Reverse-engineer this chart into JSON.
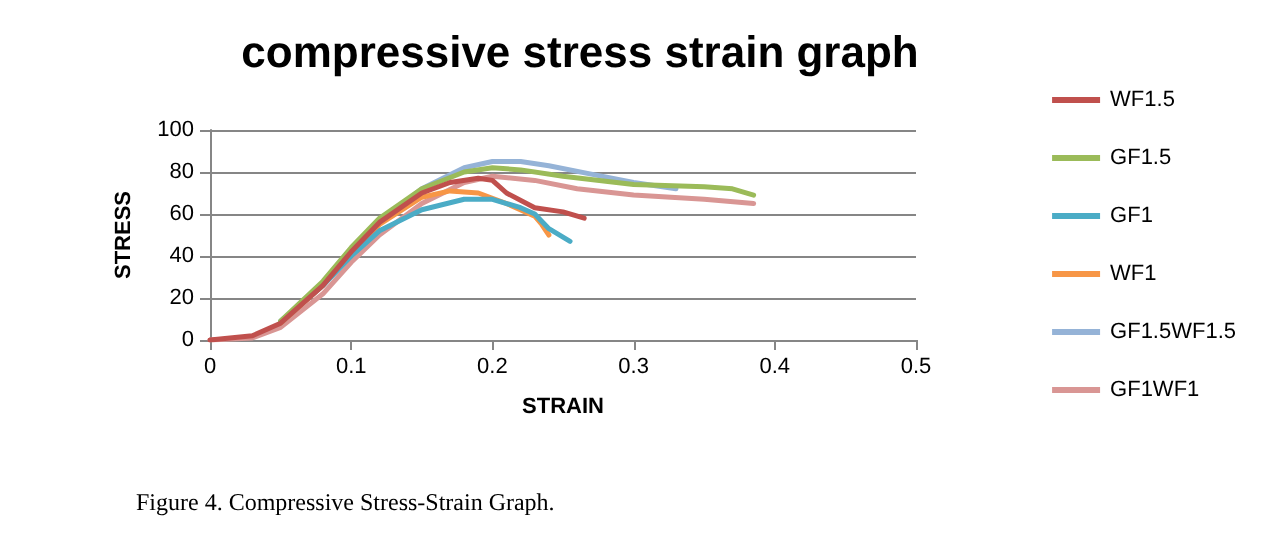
{
  "chart_data": {
    "type": "line",
    "title": "compressive stress strain graph",
    "xlabel": "STRAIN",
    "ylabel": "STRESS",
    "xlim": [
      0,
      0.5
    ],
    "xticks": [
      0,
      0.1,
      0.2,
      0.3,
      0.4,
      0.5
    ],
    "ylim": [
      0,
      100
    ],
    "yticks": [
      0,
      20,
      40,
      60,
      80,
      100
    ],
    "grid": "y",
    "legend": "right",
    "marker": "none",
    "line_style": "solid",
    "series": [
      {
        "name": "WF1.5",
        "color": "#c0504d",
        "x": [
          0,
          0.03,
          0.05,
          0.08,
          0.1,
          0.12,
          0.15,
          0.17,
          0.19,
          0.2,
          0.21,
          0.23,
          0.25,
          0.265
        ],
        "values": [
          0,
          2,
          8,
          26,
          42,
          56,
          70,
          75,
          77,
          76,
          70,
          63,
          61,
          58
        ]
      },
      {
        "name": "GF1.5",
        "color": "#9bbb59",
        "x": [
          0.05,
          0.08,
          0.1,
          0.12,
          0.15,
          0.18,
          0.2,
          0.22,
          0.25,
          0.3,
          0.35,
          0.37,
          0.385
        ],
        "values": [
          9,
          28,
          44,
          58,
          72,
          80,
          82,
          81,
          78,
          74,
          73,
          72,
          69
        ]
      },
      {
        "name": "GF1",
        "color": "#4bacc6",
        "x": [
          0.05,
          0.08,
          0.1,
          0.12,
          0.15,
          0.18,
          0.2,
          0.22,
          0.23,
          0.24,
          0.255
        ],
        "values": [
          9,
          26,
          40,
          52,
          62,
          67,
          67,
          63,
          60,
          53,
          47
        ]
      },
      {
        "name": "WF1",
        "color": "#f79646",
        "x": [
          0.05,
          0.08,
          0.1,
          0.12,
          0.15,
          0.17,
          0.19,
          0.21,
          0.23,
          0.235,
          0.24
        ],
        "values": [
          8,
          26,
          41,
          55,
          68,
          71,
          70,
          65,
          59,
          55,
          50
        ]
      },
      {
        "name": "GF1.5WF1.5",
        "color": "#95b3d7",
        "x": [
          0.05,
          0.08,
          0.1,
          0.12,
          0.15,
          0.18,
          0.2,
          0.22,
          0.24,
          0.27,
          0.3,
          0.33
        ],
        "values": [
          8,
          26,
          41,
          56,
          72,
          82,
          85,
          85,
          83,
          79,
          75,
          72
        ]
      },
      {
        "name": "GF1WF1",
        "color": "#d99694",
        "x": [
          0,
          0.03,
          0.05,
          0.08,
          0.1,
          0.12,
          0.15,
          0.18,
          0.2,
          0.23,
          0.26,
          0.3,
          0.35,
          0.385
        ],
        "values": [
          0,
          1,
          6,
          22,
          37,
          50,
          65,
          75,
          78,
          76,
          72,
          69,
          67,
          65
        ]
      }
    ],
    "annotations": [
      "Figure 4. Compressive Stress-Strain Graph."
    ]
  }
}
